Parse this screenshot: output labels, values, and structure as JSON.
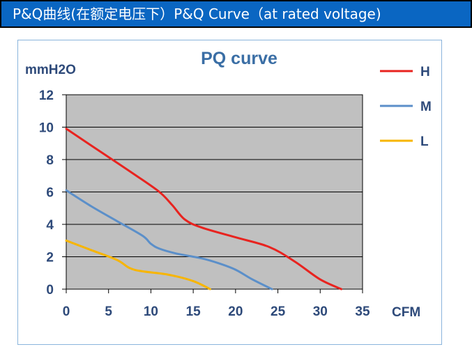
{
  "banner": {
    "text": "P&Q曲线(在额定电压下）P&Q Curve（at rated voltage)"
  },
  "colors": {
    "banner_bg": "#0a66c2",
    "plot_bg": "#c0c0c0",
    "series_H": "#e8231f",
    "series_M": "#5b8fc9",
    "series_L": "#f7b500"
  },
  "chart_data": {
    "type": "line",
    "title": "PQ curve",
    "ylabel": "mmH2O",
    "xlabel": "CFM",
    "xlim": [
      0,
      35
    ],
    "ylim": [
      0,
      12
    ],
    "xticks": [
      0,
      5,
      10,
      15,
      20,
      25,
      30,
      35
    ],
    "yticks": [
      0,
      2,
      4,
      6,
      8,
      10,
      12
    ],
    "grid": "horizontal",
    "legend_position": "right",
    "series": [
      {
        "name": "H",
        "color": "#e8231f",
        "x": [
          0,
          4,
          8,
          11,
          12.5,
          14,
          16,
          20,
          24,
          27,
          30,
          32.5
        ],
        "y": [
          9.9,
          8.5,
          7.1,
          6.0,
          5.2,
          4.3,
          3.8,
          3.2,
          2.6,
          1.7,
          0.6,
          0
        ]
      },
      {
        "name": "M",
        "color": "#5b8fc9",
        "x": [
          0,
          3,
          6,
          9,
          10,
          11,
          13,
          16,
          18,
          20,
          22,
          24.3
        ],
        "y": [
          6.1,
          5.1,
          4.2,
          3.3,
          2.8,
          2.5,
          2.2,
          1.9,
          1.6,
          1.2,
          0.6,
          0
        ]
      },
      {
        "name": "L",
        "color": "#f7b500",
        "x": [
          0,
          3,
          6,
          7.5,
          9,
          12,
          15,
          17
        ],
        "y": [
          3.0,
          2.4,
          1.8,
          1.3,
          1.1,
          0.9,
          0.5,
          0
        ]
      }
    ]
  }
}
